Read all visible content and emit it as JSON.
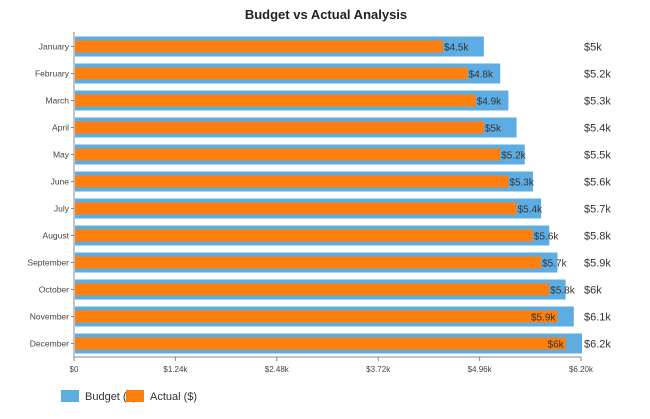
{
  "chart_data": {
    "type": "bar",
    "orientation": "horizontal",
    "title": "Budget vs Actual Analysis",
    "xlabel": "",
    "ylabel": "",
    "categories": [
      "January",
      "February",
      "March",
      "April",
      "May",
      "June",
      "July",
      "August",
      "September",
      "October",
      "November",
      "December"
    ],
    "series": [
      {
        "name": "Budget ($)",
        "color": "#5DADE2",
        "values": [
          5000,
          5200,
          5300,
          5400,
          5500,
          5600,
          5700,
          5800,
          5900,
          6000,
          6100,
          6200
        ],
        "labels": [
          "$5k",
          "$5.2k",
          "$5.3k",
          "$5.4k",
          "$5.5k",
          "$5.6k",
          "$5.7k",
          "$5.8k",
          "$5.9k",
          "$6k",
          "$6.1k",
          "$6.2k"
        ]
      },
      {
        "name": "Actual ($)",
        "color": "#FF7F0E",
        "values": [
          4500,
          4800,
          4900,
          5000,
          5200,
          5300,
          5400,
          5600,
          5700,
          5800,
          5900,
          6000
        ],
        "labels": [
          "$4.5k",
          "$4.8k",
          "$4.9k",
          "$5k",
          "$5.2k",
          "$5.3k",
          "$5.4k",
          "$5.6k",
          "$5.7k",
          "$5.8k",
          "$5.9k",
          "$6k"
        ]
      }
    ],
    "xlim": [
      0,
      6200
    ],
    "xticks": [
      0,
      1240,
      2480,
      3720,
      4960,
      6200
    ],
    "xtick_labels": [
      "$0",
      "$1.24k",
      "$2.48k",
      "$3.72k",
      "$4.96k",
      "$6.20k"
    ],
    "grid": false,
    "legend": "bottom-left"
  }
}
